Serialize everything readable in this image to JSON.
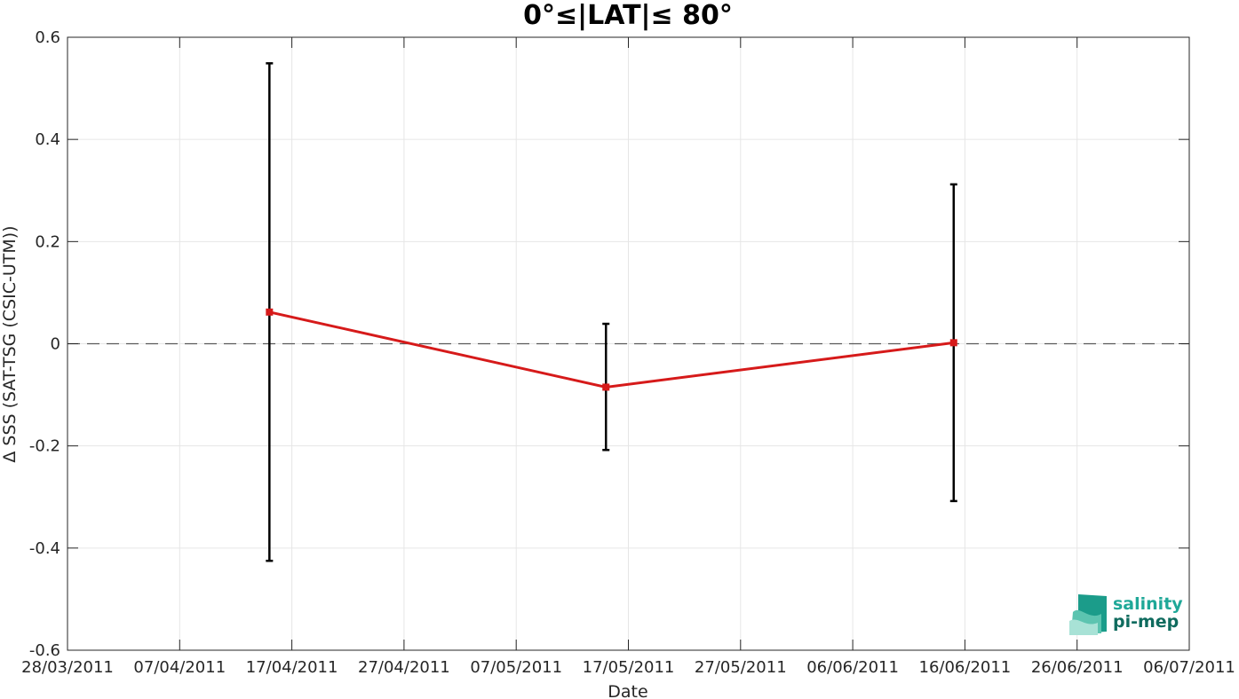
{
  "chart_data": {
    "type": "line",
    "title": "0°≤|LAT|≤ 80°",
    "xlabel": "Date",
    "ylabel": "Δ SSS (SAT-TSG (CSIC-UTM))",
    "x_ticks": [
      "28/03/2011",
      "07/04/2011",
      "17/04/2011",
      "27/04/2011",
      "07/05/2011",
      "17/05/2011",
      "27/05/2011",
      "06/06/2011",
      "16/06/2011",
      "26/06/2011",
      "06/07/2011"
    ],
    "y_ticks": [
      "0.6",
      "0.4",
      "0.2",
      "0",
      "-0.2",
      "-0.4",
      "-0.6"
    ],
    "xlim": [
      "28/03/2011",
      "06/07/2011"
    ],
    "ylim": [
      -0.6,
      0.6
    ],
    "grid": true,
    "reference_line": {
      "y": 0,
      "style": "dashed",
      "color": "#595959"
    },
    "series": [
      {
        "color": "#d61a1a",
        "error_bar_color": "#000000",
        "points": [
          {
            "x": "15/04/2011",
            "y": 0.062,
            "err_low": -0.425,
            "err_high": 0.549
          },
          {
            "x": "15/05/2011",
            "y": -0.085,
            "err_low": -0.208,
            "err_high": 0.039
          },
          {
            "x": "15/06/2011",
            "y": 0.002,
            "err_low": -0.308,
            "err_high": 0.312
          }
        ]
      }
    ]
  },
  "logo": {
    "line1": "salinity",
    "line2": "pi-mep"
  }
}
